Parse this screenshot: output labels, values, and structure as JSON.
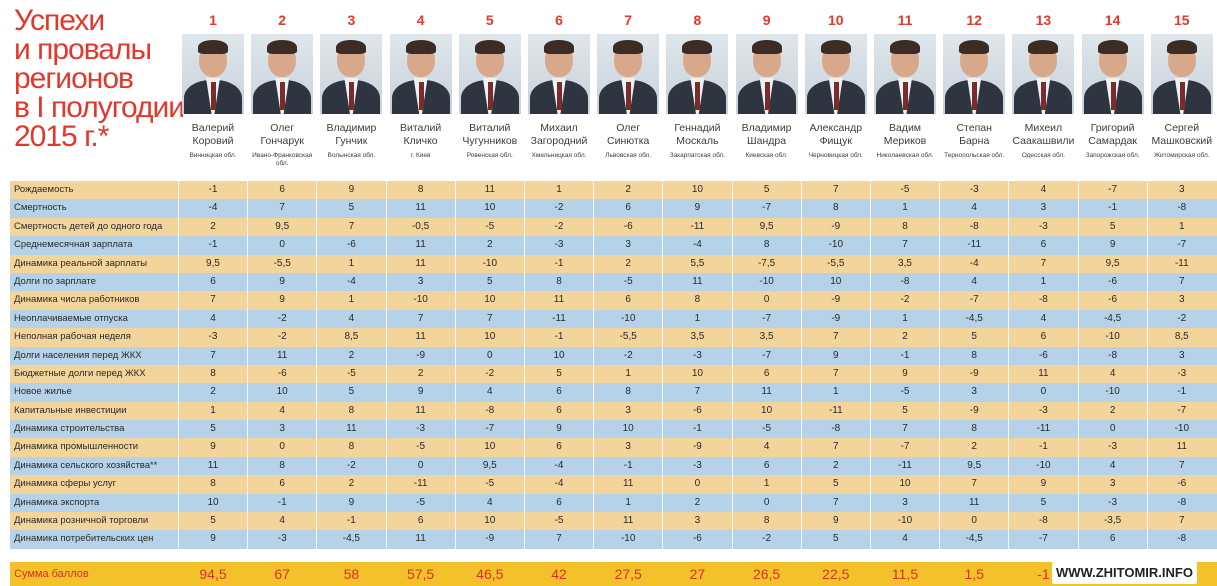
{
  "title": [
    "Успехи",
    "и провалы",
    "регионов",
    "в I полугодии",
    "2015 г.*"
  ],
  "people": [
    {
      "rank": "1",
      "first": "Валерий",
      "last": "Коровий",
      "region": "Винницкая обл."
    },
    {
      "rank": "2",
      "first": "Олег",
      "last": "Гончарук",
      "region": "Ивано-Франковская обл."
    },
    {
      "rank": "3",
      "first": "Владимир",
      "last": "Гунчик",
      "region": "Волынская обл."
    },
    {
      "rank": "4",
      "first": "Виталий",
      "last": "Кличко",
      "region": "г. Киев"
    },
    {
      "rank": "5",
      "first": "Виталий",
      "last": "Чугунников",
      "region": "Ровенская обл."
    },
    {
      "rank": "6",
      "first": "Михаил",
      "last": "Загородний",
      "region": "Хмельницкая обл."
    },
    {
      "rank": "7",
      "first": "Олег",
      "last": "Синютка",
      "region": "Львовская обл."
    },
    {
      "rank": "8",
      "first": "Геннадий",
      "last": "Москаль",
      "region": "Закарпатская обл."
    },
    {
      "rank": "9",
      "first": "Владимир",
      "last": "Шандра",
      "region": "Киевская обл."
    },
    {
      "rank": "10",
      "first": "Александр",
      "last": "Фищук",
      "region": "Черновицкая обл."
    },
    {
      "rank": "11",
      "first": "Вадим",
      "last": "Мериков",
      "region": "Николаевская обл."
    },
    {
      "rank": "12",
      "first": "Степан",
      "last": "Барна",
      "region": "Тернопольская обл."
    },
    {
      "rank": "13",
      "first": "Михеил",
      "last": "Саакашвили",
      "region": "Одесская обл."
    },
    {
      "rank": "14",
      "first": "Григорий",
      "last": "Самардак",
      "region": "Запорожская обл."
    },
    {
      "rank": "15",
      "first": "Сергей",
      "last": "Машковский",
      "region": "Житомирская обл."
    }
  ],
  "rows": [
    {
      "label": "Рождаемость",
      "values": [
        "-1",
        "6",
        "9",
        "8",
        "11",
        "1",
        "2",
        "10",
        "5",
        "7",
        "-5",
        "-3",
        "4",
        "-7",
        "3"
      ]
    },
    {
      "label": "Смертность",
      "values": [
        "-4",
        "7",
        "5",
        "11",
        "10",
        "-2",
        "6",
        "9",
        "-7",
        "8",
        "1",
        "4",
        "3",
        "-1",
        "-8"
      ]
    },
    {
      "label": "Смертность детей до одного года",
      "values": [
        "2",
        "9,5",
        "7",
        "-0,5",
        "-5",
        "-2",
        "-6",
        "-11",
        "9,5",
        "-9",
        "8",
        "-8",
        "-3",
        "5",
        "1"
      ]
    },
    {
      "label": "Среднемесячная зарплата",
      "values": [
        "-1",
        "0",
        "-6",
        "11",
        "2",
        "-3",
        "3",
        "-4",
        "8",
        "-10",
        "7",
        "-11",
        "6",
        "9",
        "-7"
      ]
    },
    {
      "label": "Динамика реальной зарплаты",
      "values": [
        "9,5",
        "-5,5",
        "1",
        "11",
        "-10",
        "-1",
        "2",
        "5,5",
        "-7,5",
        "-5,5",
        "3,5",
        "-4",
        "7",
        "9,5",
        "-11"
      ]
    },
    {
      "label": "Долги по зарплате",
      "values": [
        "6",
        "9",
        "-4",
        "3",
        "5",
        "8",
        "-5",
        "11",
        "-10",
        "10",
        "-8",
        "4",
        "1",
        "-6",
        "7"
      ]
    },
    {
      "label": "Динамика числа работников",
      "values": [
        "7",
        "9",
        "1",
        "-10",
        "10",
        "11",
        "6",
        "8",
        "0",
        "-9",
        "-2",
        "-7",
        "-8",
        "-6",
        "3"
      ]
    },
    {
      "label": "Неоплачиваемые отпуска",
      "values": [
        "4",
        "-2",
        "4",
        "7",
        "7",
        "-11",
        "-10",
        "1",
        "-7",
        "-9",
        "1",
        "-4,5",
        "4",
        "-4,5",
        "-2"
      ]
    },
    {
      "label": "Неполная рабочая неделя",
      "values": [
        "-3",
        "-2",
        "8,5",
        "11",
        "10",
        "-1",
        "-5,5",
        "3,5",
        "3,5",
        "7",
        "2",
        "5",
        "6",
        "-10",
        "8,5"
      ]
    },
    {
      "label": "Долги населения перед ЖКХ",
      "values": [
        "7",
        "11",
        "2",
        "-9",
        "0",
        "10",
        "-2",
        "-3",
        "-7",
        "9",
        "-1",
        "8",
        "-6",
        "-8",
        "3"
      ]
    },
    {
      "label": "Бюджетные долги перед ЖКХ",
      "values": [
        "8",
        "-6",
        "-5",
        "2",
        "-2",
        "5",
        "1",
        "10",
        "6",
        "7",
        "9",
        "-9",
        "11",
        "4",
        "-3"
      ]
    },
    {
      "label": "Новое жилье",
      "values": [
        "2",
        "10",
        "5",
        "9",
        "4",
        "6",
        "8",
        "7",
        "11",
        "1",
        "-5",
        "3",
        "0",
        "-10",
        "-1"
      ]
    },
    {
      "label": "Капитальные инвестиции",
      "values": [
        "1",
        "4",
        "8",
        "11",
        "-8",
        "6",
        "3",
        "-6",
        "10",
        "-11",
        "5",
        "-9",
        "-3",
        "2",
        "-7"
      ]
    },
    {
      "label": "Динамика строительства",
      "values": [
        "5",
        "3",
        "11",
        "-3",
        "-7",
        "9",
        "10",
        "-1",
        "-5",
        "-8",
        "7",
        "8",
        "-11",
        "0",
        "-10"
      ]
    },
    {
      "label": "Динамика промышленности",
      "values": [
        "9",
        "0",
        "8",
        "-5",
        "10",
        "6",
        "3",
        "-9",
        "4",
        "7",
        "-7",
        "2",
        "-1",
        "-3",
        "11"
      ]
    },
    {
      "label": "Динамика сельского хозяйства**",
      "values": [
        "11",
        "8",
        "-2",
        "0",
        "9,5",
        "-4",
        "-1",
        "-3",
        "6",
        "2",
        "-11",
        "9,5",
        "-10",
        "4",
        "7"
      ]
    },
    {
      "label": "Динамика сферы услуг",
      "values": [
        "8",
        "6",
        "2",
        "-11",
        "-5",
        "-4",
        "11",
        "0",
        "1",
        "5",
        "10",
        "7",
        "9",
        "3",
        "-6"
      ]
    },
    {
      "label": "Динамика экспорта",
      "values": [
        "10",
        "-1",
        "9",
        "-5",
        "4",
        "6",
        "1",
        "2",
        "0",
        "7",
        "3",
        "11",
        "5",
        "-3",
        "-8"
      ]
    },
    {
      "label": "Динамика розничной торговли",
      "values": [
        "5",
        "4",
        "-1",
        "6",
        "10",
        "-5",
        "11",
        "3",
        "8",
        "9",
        "-10",
        "0",
        "-8",
        "-3,5",
        "7"
      ]
    },
    {
      "label": "Динамика потребительских цен",
      "values": [
        "9",
        "-3",
        "-4,5",
        "11",
        "-9",
        "7",
        "-10",
        "-6",
        "-2",
        "5",
        "4",
        "-4,5",
        "-7",
        "6",
        "-8"
      ]
    }
  ],
  "total": {
    "label": "Сумма баллов",
    "values": [
      "94,5",
      "67",
      "58",
      "57,5",
      "46,5",
      "42",
      "27,5",
      "27",
      "26,5",
      "22,5",
      "11,5",
      "1,5",
      "-1",
      "",
      ""
    ]
  },
  "watermark": "WWW.ZHITOMIR.INFO",
  "colors": {
    "accent": "#e2382c",
    "row_odd": "#f3d49a",
    "row_even": "#b5d2e8",
    "total_bg": "#f3c22a"
  }
}
